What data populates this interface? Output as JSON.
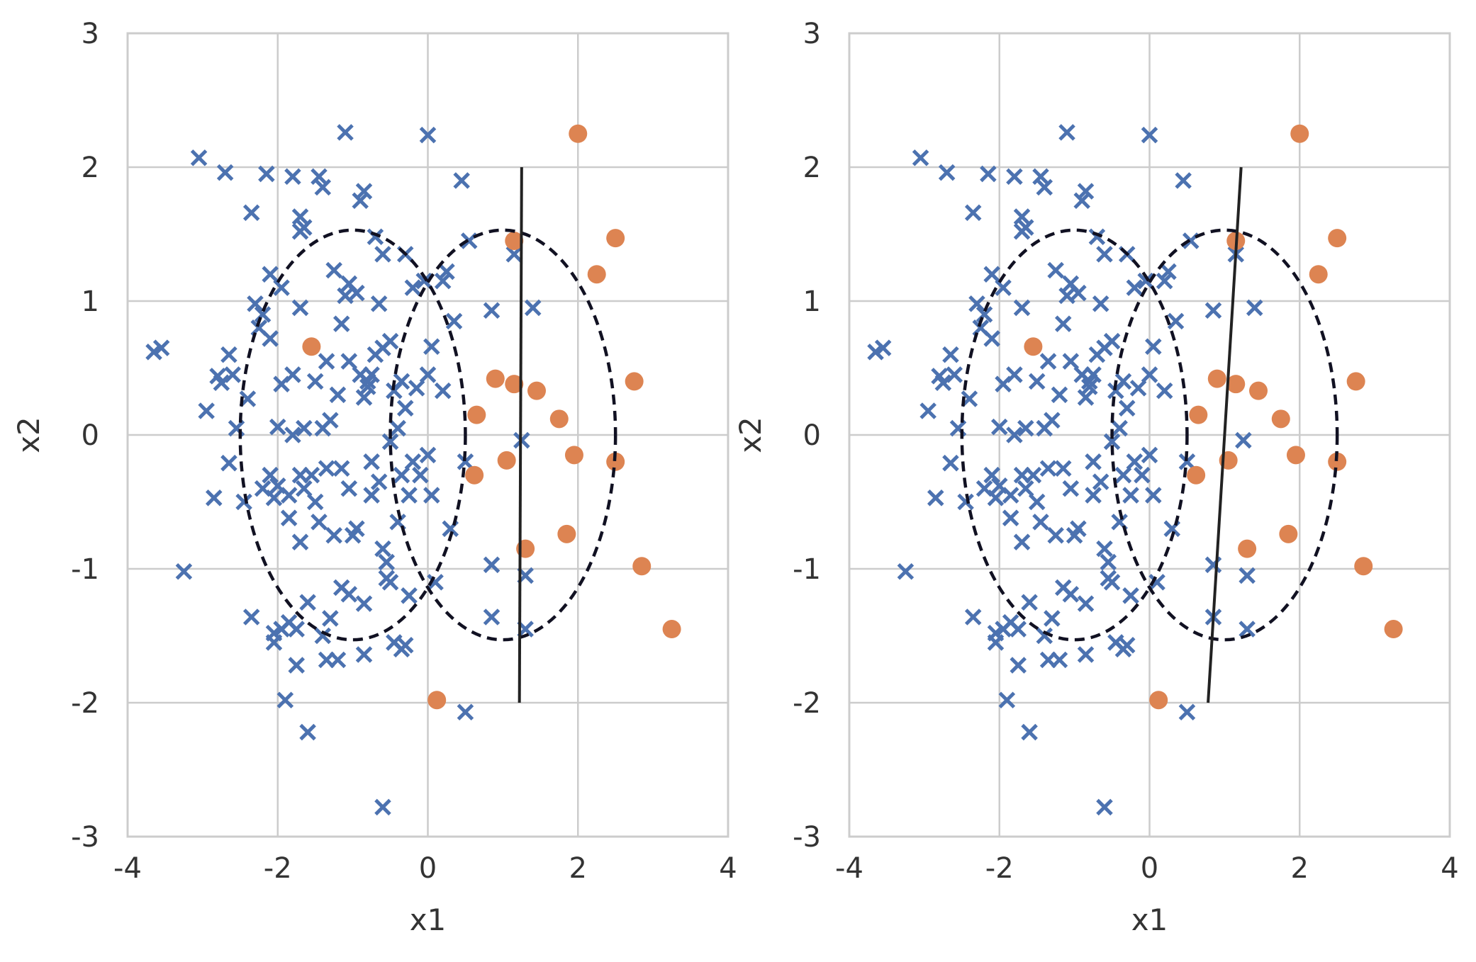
{
  "chart_data": [
    {
      "type": "scatter",
      "xlabel": "x1",
      "ylabel": "x2",
      "xlim": [
        -4,
        4
      ],
      "ylim": [
        -3,
        3
      ],
      "xticks": [
        "-4",
        "-2",
        "0",
        "2",
        "4"
      ],
      "yticks": [
        "-3",
        "-2",
        "-1",
        "0",
        "1",
        "2",
        "3"
      ],
      "grid": true,
      "series": [
        {
          "marker": "x",
          "color": "#4c72b0",
          "points": [
            [
              -3.65,
              0.62
            ],
            [
              -3.55,
              0.65
            ],
            [
              -3.25,
              -1.02
            ],
            [
              -3.05,
              2.07
            ],
            [
              -2.95,
              0.18
            ],
            [
              -2.85,
              -0.47
            ],
            [
              -2.8,
              0.44
            ],
            [
              -2.75,
              0.39
            ],
            [
              -2.7,
              1.96
            ],
            [
              -2.65,
              -0.21
            ],
            [
              -2.65,
              0.6
            ],
            [
              -2.6,
              0.45
            ],
            [
              -2.55,
              0.05
            ],
            [
              -2.45,
              -0.5
            ],
            [
              -2.4,
              0.27
            ],
            [
              -2.35,
              1.66
            ],
            [
              -2.35,
              -1.36
            ],
            [
              -2.3,
              0.98
            ],
            [
              -2.25,
              0.8
            ],
            [
              -2.2,
              0.9
            ],
            [
              -2.2,
              -0.4
            ],
            [
              -2.15,
              1.95
            ],
            [
              -2.1,
              1.2
            ],
            [
              -2.1,
              0.72
            ],
            [
              -2.1,
              -0.3
            ],
            [
              -2.05,
              -0.47
            ],
            [
              -2.05,
              -1.48
            ],
            [
              -2.05,
              -1.55
            ],
            [
              -2.0,
              0.06
            ],
            [
              -2.0,
              -0.38
            ],
            [
              -1.95,
              1.1
            ],
            [
              -1.95,
              0.38
            ],
            [
              -1.95,
              -1.45
            ],
            [
              -1.9,
              -1.98
            ],
            [
              -1.85,
              -0.45
            ],
            [
              -1.85,
              -0.62
            ],
            [
              -1.85,
              -1.4
            ],
            [
              -1.8,
              1.93
            ],
            [
              -1.8,
              0.45
            ],
            [
              -1.8,
              0.0
            ],
            [
              -1.75,
              -1.72
            ],
            [
              -1.75,
              -1.45
            ],
            [
              -1.7,
              1.63
            ],
            [
              -1.7,
              1.52
            ],
            [
              -1.7,
              0.95
            ],
            [
              -1.7,
              -0.3
            ],
            [
              -1.7,
              -0.8
            ],
            [
              -1.65,
              1.55
            ],
            [
              -1.65,
              0.05
            ],
            [
              -1.65,
              -0.4
            ],
            [
              -1.6,
              -2.22
            ],
            [
              -1.6,
              -1.25
            ],
            [
              -1.55,
              -0.3
            ],
            [
              -1.5,
              0.4
            ],
            [
              -1.5,
              -0.5
            ],
            [
              -1.45,
              1.93
            ],
            [
              -1.45,
              -0.65
            ],
            [
              -1.4,
              -1.5
            ],
            [
              -1.4,
              1.85
            ],
            [
              -1.4,
              0.05
            ],
            [
              -1.35,
              0.55
            ],
            [
              -1.35,
              -0.25
            ],
            [
              -1.35,
              -1.68
            ],
            [
              -1.3,
              0.11
            ],
            [
              -1.3,
              -1.37
            ],
            [
              -1.25,
              1.23
            ],
            [
              -1.25,
              -0.75
            ],
            [
              -1.2,
              0.3
            ],
            [
              -1.2,
              -1.68
            ],
            [
              -1.15,
              0.83
            ],
            [
              -1.15,
              -0.25
            ],
            [
              -1.15,
              -1.14
            ],
            [
              -1.1,
              2.26
            ],
            [
              -1.1,
              1.04
            ],
            [
              -1.05,
              1.13
            ],
            [
              -1.05,
              0.55
            ],
            [
              -1.05,
              -0.4
            ],
            [
              -1.05,
              -1.19
            ],
            [
              -1.0,
              -0.75
            ],
            [
              -0.95,
              1.06
            ],
            [
              -0.95,
              -0.7
            ],
            [
              -0.9,
              1.75
            ],
            [
              -0.9,
              0.45
            ],
            [
              -0.85,
              1.82
            ],
            [
              -0.85,
              0.28
            ],
            [
              -0.85,
              -1.26
            ],
            [
              -0.85,
              -1.64
            ],
            [
              -0.8,
              0.4
            ],
            [
              -0.8,
              0.36
            ],
            [
              -0.75,
              0.45
            ],
            [
              -0.75,
              -0.2
            ],
            [
              -0.75,
              -0.45
            ],
            [
              -0.7,
              1.48
            ],
            [
              -0.7,
              0.6
            ],
            [
              -0.65,
              0.98
            ],
            [
              -0.65,
              -0.35
            ],
            [
              -0.6,
              1.35
            ],
            [
              -0.6,
              0.65
            ],
            [
              -0.6,
              -0.85
            ],
            [
              -0.6,
              -2.78
            ],
            [
              -0.55,
              -0.95
            ],
            [
              -0.55,
              -1.07
            ],
            [
              -0.5,
              0.7
            ],
            [
              -0.5,
              -0.05
            ],
            [
              -0.5,
              -1.1
            ],
            [
              -0.45,
              0.33
            ],
            [
              -0.45,
              -1.55
            ],
            [
              -0.4,
              0.05
            ],
            [
              -0.4,
              -0.65
            ],
            [
              -0.35,
              0.4
            ],
            [
              -0.35,
              -0.3
            ],
            [
              -0.35,
              -1.6
            ],
            [
              -0.3,
              1.35
            ],
            [
              -0.3,
              0.2
            ],
            [
              -0.3,
              -1.57
            ],
            [
              -0.25,
              -0.45
            ],
            [
              -0.25,
              -1.2
            ],
            [
              -0.2,
              1.1
            ],
            [
              -0.2,
              -0.2
            ],
            [
              -0.15,
              0.35
            ],
            [
              -0.1,
              -0.3
            ],
            [
              -0.05,
              1.15
            ],
            [
              0.0,
              2.24
            ],
            [
              0.0,
              0.45
            ],
            [
              0.0,
              -0.15
            ],
            [
              0.05,
              0.66
            ],
            [
              0.05,
              -0.45
            ],
            [
              0.1,
              -1.1
            ],
            [
              0.2,
              1.15
            ],
            [
              0.2,
              0.33
            ],
            [
              0.25,
              1.22
            ],
            [
              0.3,
              -0.7
            ],
            [
              0.35,
              0.85
            ],
            [
              0.45,
              1.9
            ],
            [
              0.5,
              -0.2
            ],
            [
              0.5,
              -2.07
            ],
            [
              0.55,
              1.45
            ],
            [
              0.85,
              0.93
            ],
            [
              0.85,
              -0.97
            ],
            [
              0.85,
              -1.36
            ],
            [
              1.15,
              1.35
            ],
            [
              1.25,
              -0.04
            ],
            [
              1.3,
              -1.05
            ],
            [
              1.3,
              -1.45
            ],
            [
              1.4,
              0.95
            ]
          ]
        },
        {
          "marker": "o",
          "color": "#dd8452",
          "points": [
            [
              -1.55,
              0.66
            ],
            [
              0.12,
              -1.98
            ],
            [
              0.62,
              -0.3
            ],
            [
              0.65,
              0.15
            ],
            [
              0.9,
              0.42
            ],
            [
              1.05,
              -0.19
            ],
            [
              1.15,
              1.45
            ],
            [
              1.15,
              0.38
            ],
            [
              1.3,
              -0.85
            ],
            [
              1.45,
              0.33
            ],
            [
              1.75,
              0.12
            ],
            [
              1.85,
              -0.74
            ],
            [
              1.95,
              -0.15
            ],
            [
              2.0,
              2.25
            ],
            [
              2.25,
              1.2
            ],
            [
              2.5,
              1.47
            ],
            [
              2.5,
              -0.2
            ],
            [
              2.75,
              0.4
            ],
            [
              2.85,
              -0.98
            ],
            [
              3.25,
              -1.45
            ]
          ]
        }
      ],
      "ellipses": [
        {
          "center": [
            -1.0,
            0.0
          ],
          "rx": 1.5,
          "ry": 1.53,
          "style": "dashed"
        },
        {
          "center": [
            1.0,
            0.0
          ],
          "rx": 1.5,
          "ry": 1.53,
          "style": "dashed"
        }
      ],
      "boundary": {
        "from": [
          1.22,
          -2.0
        ],
        "to": [
          1.25,
          2.0
        ]
      }
    },
    {
      "type": "scatter",
      "xlabel": "x1",
      "ylabel": "x2",
      "xlim": [
        -4,
        4
      ],
      "ylim": [
        -3,
        3
      ],
      "xticks": [
        "-4",
        "-2",
        "0",
        "2",
        "4"
      ],
      "yticks": [
        "-3",
        "-2",
        "-1",
        "0",
        "1",
        "2",
        "3"
      ],
      "grid": true,
      "series_ref": 0,
      "ellipses": [
        {
          "center": [
            -1.0,
            0.0
          ],
          "rx": 1.5,
          "ry": 1.53,
          "style": "dashed"
        },
        {
          "center": [
            1.0,
            0.0
          ],
          "rx": 1.5,
          "ry": 1.53,
          "style": "dashed"
        }
      ],
      "boundary": {
        "from": [
          0.78,
          -2.0
        ],
        "to": [
          1.22,
          2.0
        ]
      }
    }
  ]
}
